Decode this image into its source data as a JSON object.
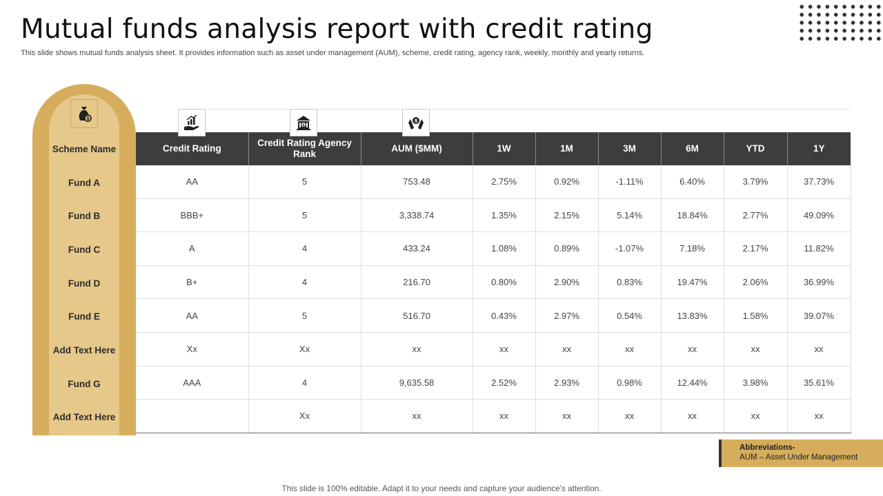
{
  "title": "Mutual funds analysis report with credit rating",
  "subtitle": "This slide shows mutual funds analysis sheet. It provides information such as asset under management (AUM),  scheme, credit rating, agency rank, weekly, monthly and yearly returns.",
  "icons": {
    "scheme": "money-bag-icon",
    "credit_rating": "growth-hand-icon",
    "agency_rank": "bank-building-icon",
    "aum": "hands-money-icon"
  },
  "colors": {
    "gold_dark": "#d5ad5c",
    "gold_light": "#e6c88a",
    "header_bg": "#3d3d3d",
    "positive": "#4aa33a",
    "negative": "#d03a2a"
  },
  "scheme_header": "Scheme Name",
  "schemes": [
    "Fund A",
    "Fund B",
    "Fund C",
    "Fund D",
    "Fund E",
    "Add Text Here",
    "Fund G",
    "Add Text Here"
  ],
  "columns": [
    "Credit Rating",
    "Credit Rating Agency Rank",
    "AUM ($MM)",
    "1W",
    "1M",
    "3M",
    "6M",
    "YTD",
    "1Y"
  ],
  "rows": [
    [
      "AA",
      "5",
      "753.48",
      "2.75%",
      "0.92%",
      "-1.11%",
      "6.40%",
      "3.79%",
      "37.73%"
    ],
    [
      "BBB+",
      "5",
      "3,338.74",
      "1.35%",
      "2.15%",
      "5.14%",
      "18.84%",
      "2.77%",
      "49.09%"
    ],
    [
      "A",
      "4",
      "433.24",
      "1.08%",
      "0.89%",
      "-1.07%",
      "7.18%",
      "2.17%",
      "11.82%"
    ],
    [
      "B+",
      "4",
      "216.70",
      "0.80%",
      "2.90%",
      "0.83%",
      "19.47%",
      "2.06%",
      "36.99%"
    ],
    [
      "AA",
      "5",
      "516.70",
      "0.43%",
      "2.97%",
      "0.54%",
      "13.83%",
      "1.58%",
      "39.07%"
    ],
    [
      "Xx",
      "Xx",
      "xx",
      "xx",
      "xx",
      "xx",
      "xx",
      "xx",
      "xx"
    ],
    [
      "AAA",
      "4",
      "9,635.58",
      "2.52%",
      "2.93%",
      "0.98%",
      "12.44%",
      "3.98%",
      "35.61%"
    ],
    [
      "",
      "Xx",
      "xx",
      "xx",
      "xx",
      "xx",
      "xx",
      "xx",
      "xx"
    ]
  ],
  "abbreviations": {
    "heading": "Abbreviations-",
    "text": "AUM – Asset Under Management"
  },
  "footer": "This slide is 100% editable. Adapt it to your needs and capture your audience's attention."
}
